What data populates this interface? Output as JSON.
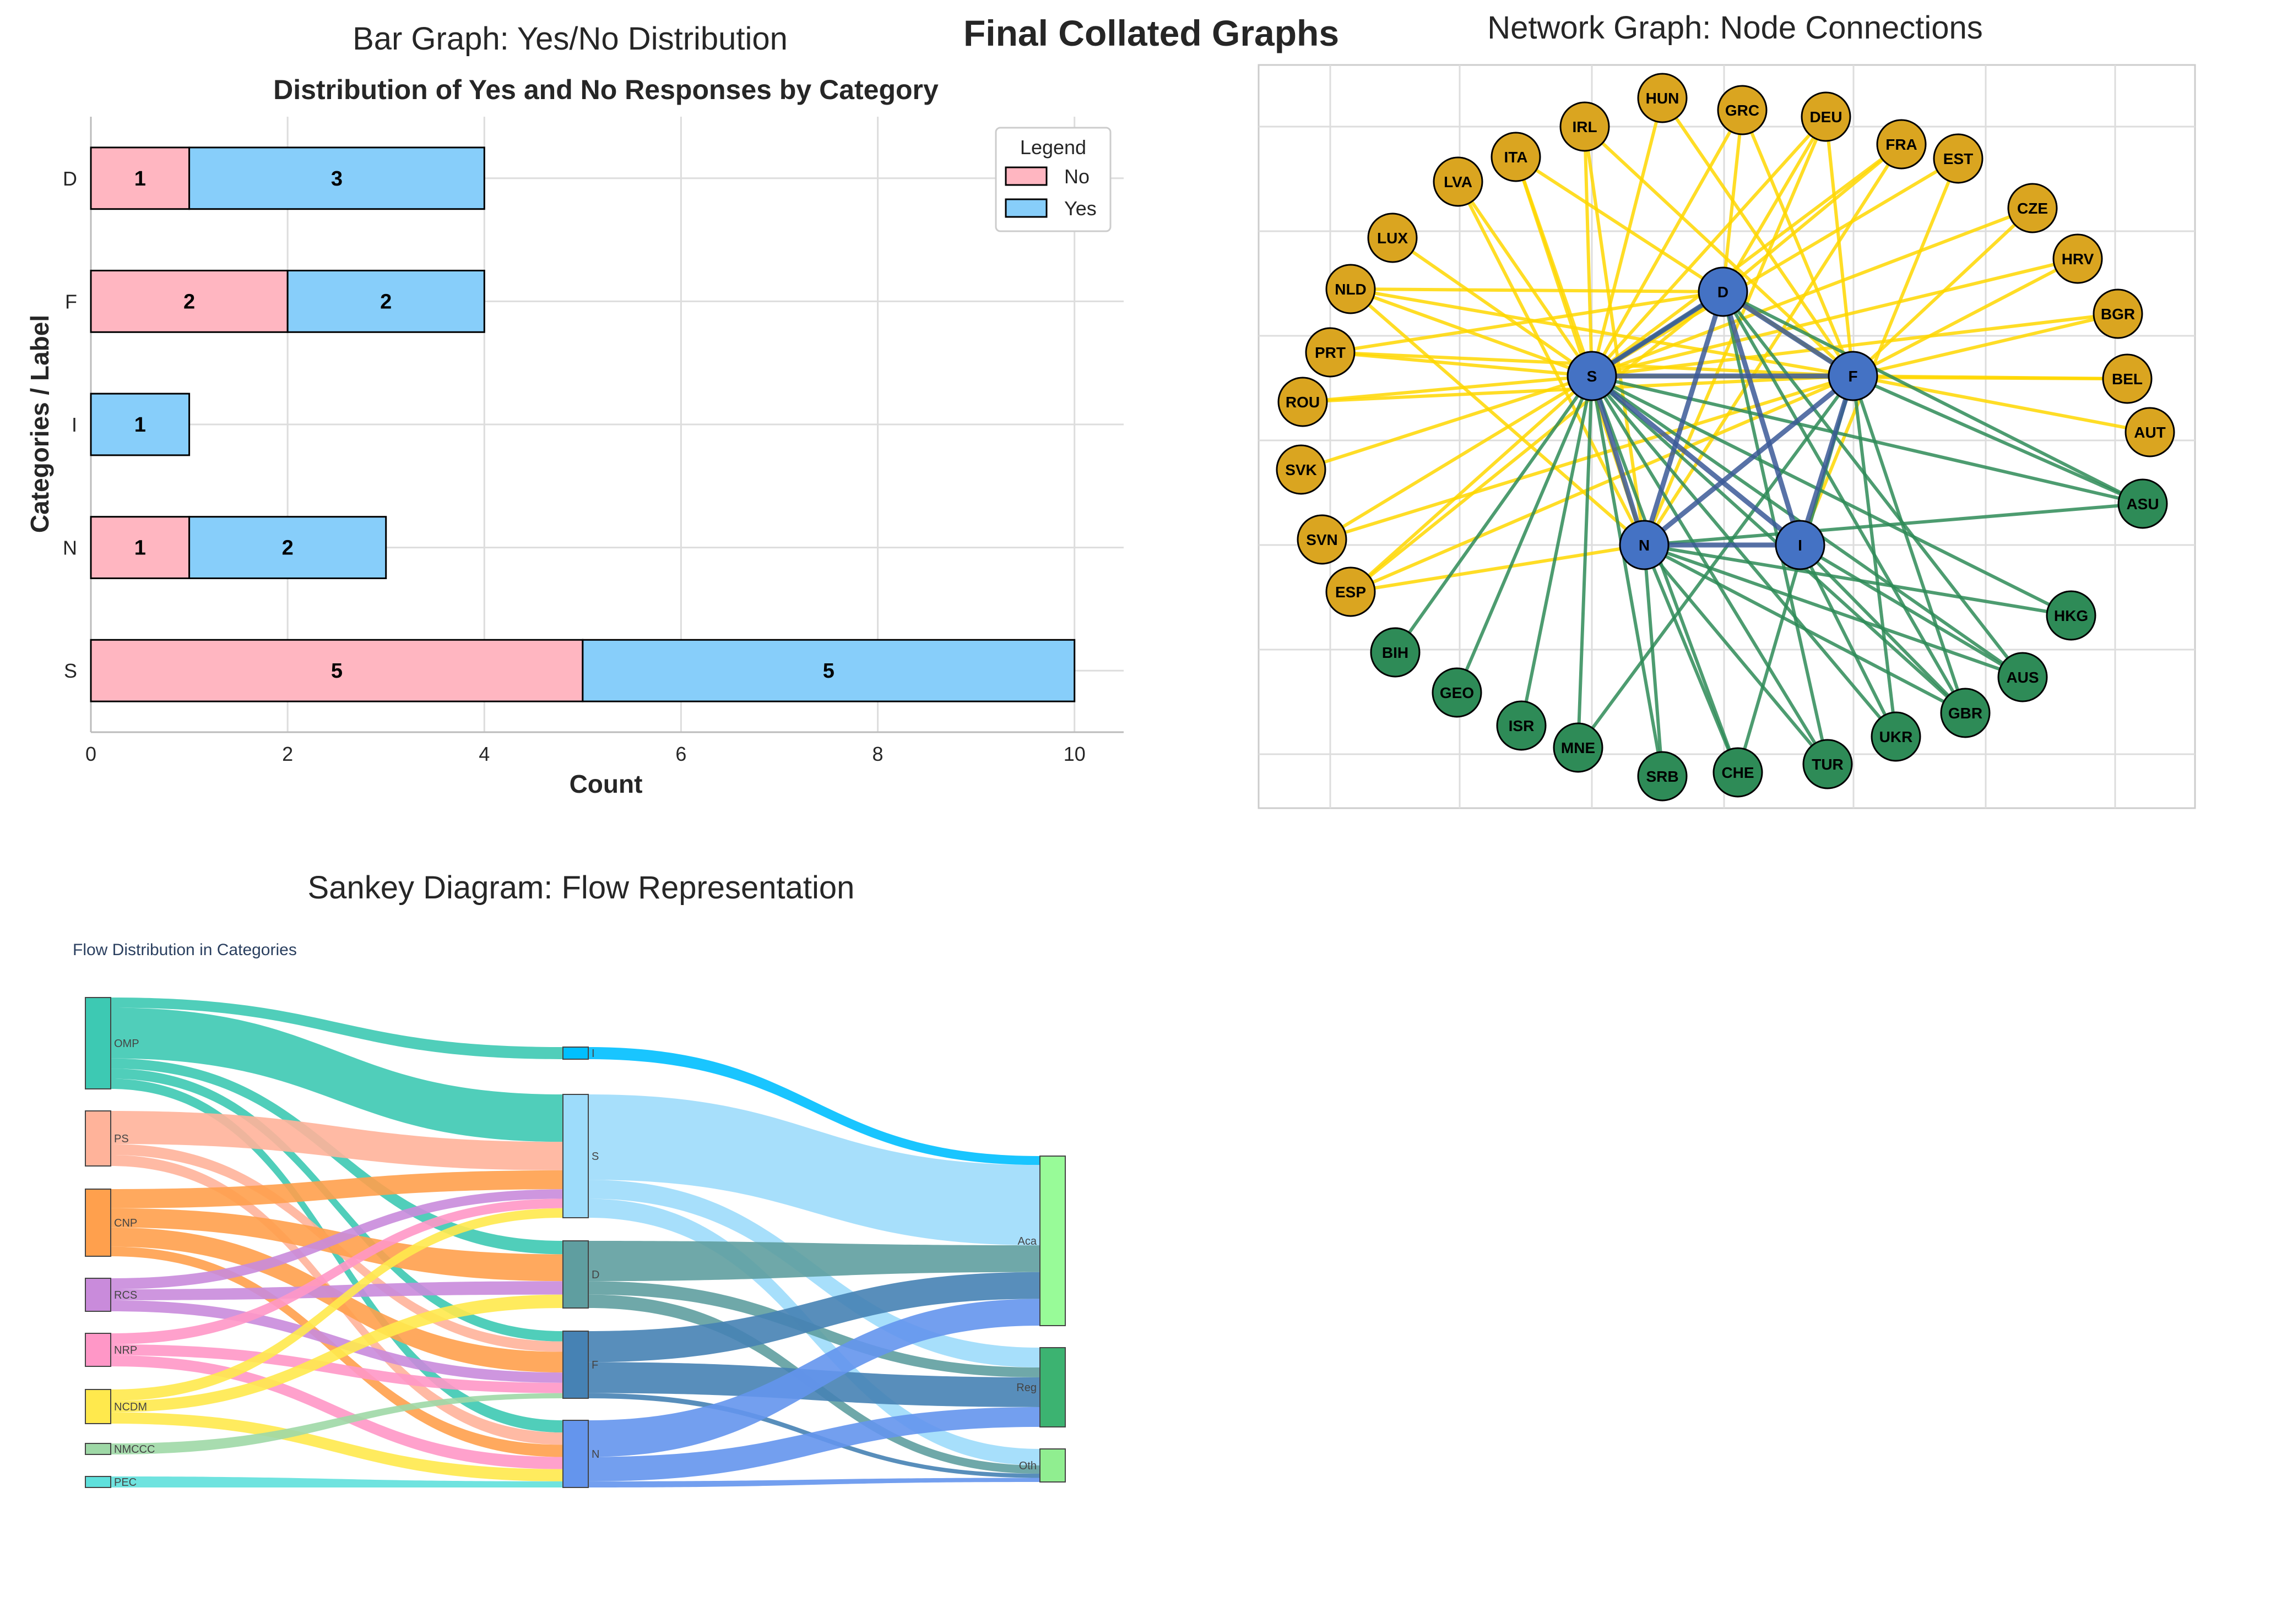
{
  "page": {
    "title": "Final Collated Graphs"
  },
  "chart_data": [
    {
      "type": "bar",
      "orientation": "horizontal",
      "stacked": true,
      "panel_title": "Bar Graph: Yes/No Distribution",
      "title": "Distribution of Yes and No Responses by Category",
      "xlabel": "Count",
      "ylabel": "Categories / Label",
      "xlim": [
        0,
        10.5
      ],
      "xticks": [
        0,
        2,
        4,
        6,
        8,
        10
      ],
      "grid": true,
      "legend": {
        "title": "Legend",
        "placement": "top-right"
      },
      "categories": [
        "D",
        "F",
        "I",
        "N",
        "S"
      ],
      "series": [
        {
          "name": "No",
          "color": "#FFB6C1",
          "values": [
            1,
            2,
            0,
            1,
            5
          ]
        },
        {
          "name": "Yes",
          "color": "#87CEFA",
          "values": [
            3,
            2,
            1,
            2,
            5
          ]
        }
      ]
    },
    {
      "type": "network",
      "panel_title": "Network Graph: Node Connections",
      "grid": true,
      "colors": {
        "core": "#4472C4",
        "yellow": "#DAA520",
        "green": "#2E8B57",
        "edge_yellow": "#FFD700",
        "edge_green": "#2E8B57",
        "edge_core": "#3B5998"
      },
      "core_nodes": [
        "S",
        "D",
        "F",
        "N",
        "I"
      ],
      "yellow_nodes": [
        "HUN",
        "GRC",
        "DEU",
        "FRA",
        "EST",
        "CZE",
        "HRV",
        "BGR",
        "BEL",
        "AUT",
        "IRL",
        "ITA",
        "LVA",
        "LUX",
        "NLD",
        "PRT",
        "ROU",
        "SVK",
        "SVN",
        "ESP"
      ],
      "green_nodes": [
        "ASU",
        "HKG",
        "AUS",
        "GBR",
        "UKR",
        "TUR",
        "CHE",
        "SRB",
        "MNE",
        "ISR",
        "GEO",
        "BIH"
      ],
      "core_edges": [
        [
          "S",
          "D"
        ],
        [
          "S",
          "F"
        ],
        [
          "S",
          "N"
        ],
        [
          "S",
          "I"
        ],
        [
          "D",
          "F"
        ],
        [
          "D",
          "N"
        ],
        [
          "D",
          "I"
        ],
        [
          "F",
          "N"
        ],
        [
          "F",
          "I"
        ],
        [
          "N",
          "I"
        ]
      ],
      "yellow_edges": [
        [
          "HUN",
          "S"
        ],
        [
          "GRC",
          "S"
        ],
        [
          "DEU",
          "S"
        ],
        [
          "FRA",
          "S"
        ],
        [
          "EST",
          "S"
        ],
        [
          "IRL",
          "S"
        ],
        [
          "ITA",
          "S"
        ],
        [
          "LVA",
          "S"
        ],
        [
          "LUX",
          "S"
        ],
        [
          "NLD",
          "S"
        ],
        [
          "PRT",
          "S"
        ],
        [
          "ROU",
          "S"
        ],
        [
          "SVK",
          "S"
        ],
        [
          "SVN",
          "S"
        ],
        [
          "ESP",
          "S"
        ],
        [
          "CZE",
          "S"
        ],
        [
          "HRV",
          "S"
        ],
        [
          "BGR",
          "S"
        ],
        [
          "HUN",
          "F"
        ],
        [
          "GRC",
          "F"
        ],
        [
          "DEU",
          "F"
        ],
        [
          "IRL",
          "F"
        ],
        [
          "ITA",
          "F"
        ],
        [
          "NLD",
          "F"
        ],
        [
          "PRT",
          "F"
        ],
        [
          "CZE",
          "F"
        ],
        [
          "HRV",
          "F"
        ],
        [
          "BGR",
          "F"
        ],
        [
          "BEL",
          "F"
        ],
        [
          "AUT",
          "F"
        ],
        [
          "ESP",
          "F"
        ],
        [
          "ROU",
          "F"
        ],
        [
          "GRC",
          "D"
        ],
        [
          "DEU",
          "D"
        ],
        [
          "NLD",
          "D"
        ],
        [
          "ESP",
          "D"
        ],
        [
          "FRA",
          "D"
        ],
        [
          "IRL",
          "N"
        ],
        [
          "ITA",
          "N"
        ],
        [
          "DEU",
          "N"
        ],
        [
          "FRA",
          "N"
        ],
        [
          "LVA",
          "N"
        ],
        [
          "NLD",
          "N"
        ],
        [
          "ESP",
          "N"
        ],
        [
          "EST",
          "I"
        ],
        [
          "BEL",
          "S"
        ],
        [
          "PRT",
          "D"
        ],
        [
          "SVN",
          "F"
        ]
      ],
      "green_edges": [
        [
          "S",
          "BIH"
        ],
        [
          "S",
          "GEO"
        ],
        [
          "S",
          "ISR"
        ],
        [
          "S",
          "MNE"
        ],
        [
          "S",
          "SRB"
        ],
        [
          "S",
          "CHE"
        ],
        [
          "S",
          "TUR"
        ],
        [
          "S",
          "UKR"
        ],
        [
          "S",
          "GBR"
        ],
        [
          "S",
          "AUS"
        ],
        [
          "S",
          "HKG"
        ],
        [
          "S",
          "ASU"
        ],
        [
          "D",
          "GBR"
        ],
        [
          "D",
          "ASU"
        ],
        [
          "D",
          "AUS"
        ],
        [
          "F",
          "ASU"
        ],
        [
          "F",
          "CHE"
        ],
        [
          "F",
          "GBR"
        ],
        [
          "F",
          "UKR"
        ],
        [
          "N",
          "ASU"
        ],
        [
          "N",
          "GBR"
        ],
        [
          "N",
          "AUS"
        ],
        [
          "N",
          "TUR"
        ],
        [
          "N",
          "SRB"
        ],
        [
          "N",
          "HKG"
        ],
        [
          "I",
          "GBR"
        ],
        [
          "I",
          "UKR"
        ],
        [
          "D",
          "TUR"
        ],
        [
          "F",
          "MNE"
        ],
        [
          "N",
          "CHE"
        ],
        [
          "I",
          "AUS"
        ],
        [
          "S",
          "D"
        ]
      ]
    },
    {
      "type": "sankey",
      "panel_title": "Sankey Diagram: Flow Representation",
      "title": "Flow Distribution in Categories",
      "sources": [
        {
          "label": "OMP",
          "color": "#3DC9B3"
        },
        {
          "label": "PS",
          "color": "#FFB39A"
        },
        {
          "label": "CNP",
          "color": "#FFA04D"
        },
        {
          "label": "RCS",
          "color": "#C98BDB"
        },
        {
          "label": "NRP",
          "color": "#FF97C7"
        },
        {
          "label": "NCDM",
          "color": "#FFE94D"
        },
        {
          "label": "NMCCC",
          "color": "#9ED8A6"
        },
        {
          "label": "PEC",
          "color": "#5FE0DC"
        }
      ],
      "middles": [
        {
          "label": "I",
          "color": "#00BFFF"
        },
        {
          "label": "S",
          "color": "#9DDCFB"
        },
        {
          "label": "D",
          "color": "#5F9EA0"
        },
        {
          "label": "F",
          "color": "#4682B4"
        },
        {
          "label": "N",
          "color": "#6495ED"
        }
      ],
      "targets": [
        {
          "label": "Aca",
          "color": "#98FB98"
        },
        {
          "label": "Reg",
          "color": "#3CB371"
        },
        {
          "label": "Oth",
          "color": "#90EE90"
        }
      ],
      "flows": [
        {
          "source": "OMP",
          "target": "I",
          "value": 1
        },
        {
          "source": "OMP",
          "target": "S",
          "value": 5
        },
        {
          "source": "OMP",
          "target": "D",
          "value": 1
        },
        {
          "source": "OMP",
          "target": "F",
          "value": 1
        },
        {
          "source": "OMP",
          "target": "N",
          "value": 1
        },
        {
          "source": "PS",
          "target": "S",
          "value": 3
        },
        {
          "source": "PS",
          "target": "F",
          "value": 1
        },
        {
          "source": "PS",
          "target": "N",
          "value": 1
        },
        {
          "source": "CNP",
          "target": "S",
          "value": 2
        },
        {
          "source": "CNP",
          "target": "D",
          "value": 2
        },
        {
          "source": "CNP",
          "target": "F",
          "value": 2
        },
        {
          "source": "CNP",
          "target": "N",
          "value": 1
        },
        {
          "source": "RCS",
          "target": "S",
          "value": 1
        },
        {
          "source": "RCS",
          "target": "D",
          "value": 1
        },
        {
          "source": "RCS",
          "target": "F",
          "value": 1
        },
        {
          "source": "NRP",
          "target": "S",
          "value": 1
        },
        {
          "source": "NRP",
          "target": "F",
          "value": 1
        },
        {
          "source": "NRP",
          "target": "N",
          "value": 1
        },
        {
          "source": "NCDM",
          "target": "S",
          "value": 1
        },
        {
          "source": "NCDM",
          "target": "D",
          "value": 1
        },
        {
          "source": "NCDM",
          "target": "N",
          "value": 1
        },
        {
          "source": "NMCCC",
          "target": "F",
          "value": 0.5
        },
        {
          "source": "PEC",
          "target": "N",
          "value": 0.5
        },
        {
          "source": "I",
          "target": "Aca",
          "value": 1
        },
        {
          "source": "S",
          "target": "Aca",
          "value": 9
        },
        {
          "source": "S",
          "target": "Reg",
          "value": 2
        },
        {
          "source": "S",
          "target": "Oth",
          "value": 2
        },
        {
          "source": "D",
          "target": "Aca",
          "value": 3
        },
        {
          "source": "D",
          "target": "Reg",
          "value": 1
        },
        {
          "source": "D",
          "target": "Oth",
          "value": 1
        },
        {
          "source": "F",
          "target": "Aca",
          "value": 3
        },
        {
          "source": "F",
          "target": "Reg",
          "value": 3
        },
        {
          "source": "F",
          "target": "Oth",
          "value": 0.5
        },
        {
          "source": "N",
          "target": "Aca",
          "value": 3
        },
        {
          "source": "N",
          "target": "Reg",
          "value": 2
        },
        {
          "source": "N",
          "target": "Oth",
          "value": 0.5
        }
      ]
    }
  ]
}
